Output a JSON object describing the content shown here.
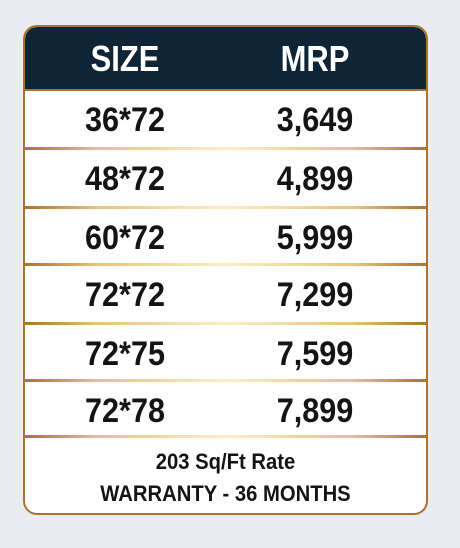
{
  "header": {
    "size_label": "SIZE",
    "mrp_label": "MRP"
  },
  "rows": [
    {
      "size": "36*72",
      "mrp": "3,649"
    },
    {
      "size": "48*72",
      "mrp": "4,899"
    },
    {
      "size": "60*72",
      "mrp": "5,999"
    },
    {
      "size": "72*72",
      "mrp": "7,299"
    },
    {
      "size": "72*75",
      "mrp": "7,599"
    },
    {
      "size": "72*78",
      "mrp": "7,899"
    }
  ],
  "footer": {
    "rate": "203 Sq/Ft Rate",
    "warranty": "WARRANTY - 36 MONTHS"
  },
  "colors": {
    "header_bg": "#0d2536",
    "border": "#a8742e",
    "text": "#141414"
  }
}
